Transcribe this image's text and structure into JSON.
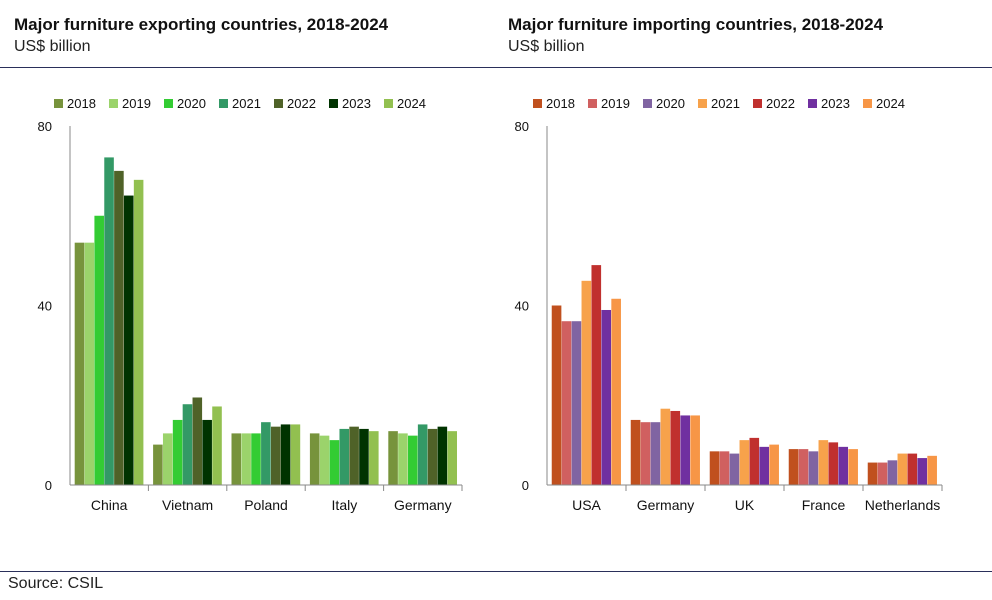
{
  "source": "Source: CSIL",
  "chart_data": [
    {
      "type": "bar",
      "title": "Major furniture exporting countries, 2018-2024",
      "subtitle": "US$ billion",
      "categories": [
        "China",
        "Vietnam",
        "Poland",
        "Italy",
        "Germany"
      ],
      "ylim": [
        0,
        80
      ],
      "yticks": [
        0,
        40,
        80
      ],
      "legend_position": "top",
      "series": [
        {
          "name": "2018",
          "color": "#77933c",
          "values": [
            54,
            9,
            11.5,
            11.5,
            12
          ]
        },
        {
          "name": "2019",
          "color": "#9bd36b",
          "values": [
            54,
            11.5,
            11.5,
            11,
            11.5
          ]
        },
        {
          "name": "2020",
          "color": "#33cc33",
          "values": [
            60,
            14.5,
            11.5,
            10,
            11
          ]
        },
        {
          "name": "2021",
          "color": "#339966",
          "values": [
            73,
            18,
            14,
            12.5,
            13.5
          ]
        },
        {
          "name": "2022",
          "color": "#4f6228",
          "values": [
            70,
            19.5,
            13,
            13,
            12.5
          ]
        },
        {
          "name": "2023",
          "color": "#003300",
          "values": [
            64.5,
            14.5,
            13.5,
            12.5,
            13
          ]
        },
        {
          "name": "2024",
          "color": "#92c050",
          "values": [
            68,
            17.5,
            13.5,
            12,
            12
          ]
        }
      ]
    },
    {
      "type": "bar",
      "title": "Major furniture importing countries, 2018-2024",
      "subtitle": "US$ billion",
      "categories": [
        "USA",
        "Germany",
        "UK",
        "France",
        "Netherlands"
      ],
      "ylim": [
        0,
        80
      ],
      "yticks": [
        0,
        40,
        80
      ],
      "legend_position": "top",
      "series": [
        {
          "name": "2018",
          "color": "#c0501e",
          "values": [
            40,
            14.5,
            7.5,
            8,
            5
          ]
        },
        {
          "name": "2019",
          "color": "#d06060",
          "values": [
            36.5,
            14,
            7.5,
            8,
            5
          ]
        },
        {
          "name": "2020",
          "color": "#8064a2",
          "values": [
            36.5,
            14,
            7,
            7.5,
            5.5
          ]
        },
        {
          "name": "2021",
          "color": "#f7a24b",
          "values": [
            45.5,
            17,
            10,
            10,
            7
          ]
        },
        {
          "name": "2022",
          "color": "#c0302e",
          "values": [
            49,
            16.5,
            10.5,
            9.5,
            7
          ]
        },
        {
          "name": "2023",
          "color": "#7030a0",
          "values": [
            39,
            15.5,
            8.5,
            8.5,
            6
          ]
        },
        {
          "name": "2024",
          "color": "#f79646",
          "values": [
            41.5,
            15.5,
            9,
            8,
            6.5
          ]
        }
      ]
    }
  ]
}
